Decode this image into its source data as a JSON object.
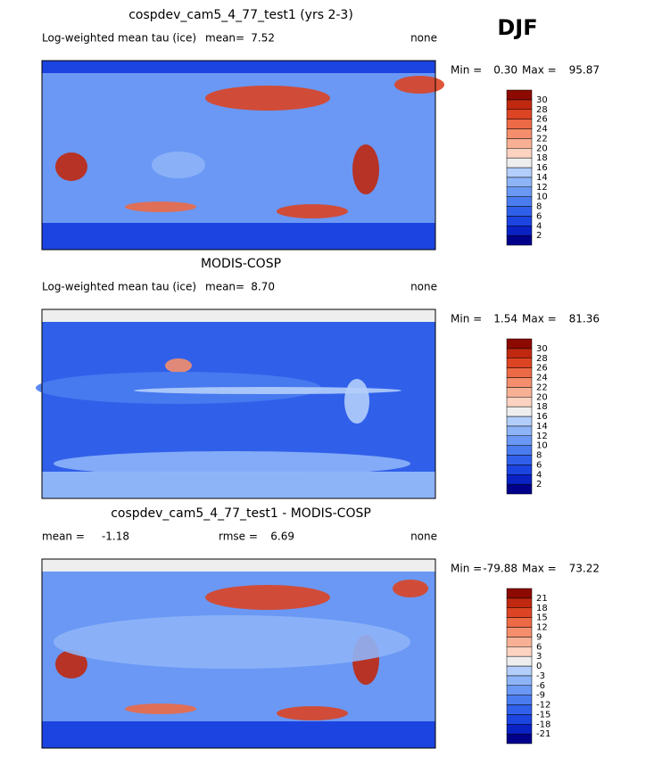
{
  "season": "DJF",
  "panels": [
    {
      "title": "cospdev_cam5_4_77_test1 (yrs 2-3)",
      "variable": "Log-weighted mean tau (ice)",
      "mean_label": "mean=",
      "mean": "7.52",
      "units": "none",
      "min_label": "Min =",
      "min": "0.30",
      "max_label": "Max =",
      "max": "95.87",
      "colorbar": {
        "labels": [
          2,
          4,
          6,
          8,
          10,
          12,
          14,
          16,
          18,
          20,
          22,
          24,
          26,
          28,
          30
        ],
        "colors": [
          "#00008b",
          "#0a22c4",
          "#1c44e0",
          "#3060ea",
          "#4a7cf0",
          "#6a98f4",
          "#8eb4f8",
          "#b4cefb",
          "#eeeeee",
          "#fcd2c0",
          "#f8b094",
          "#f48e6c",
          "#ec6a46",
          "#dc4424",
          "#c02810",
          "#8c0a00"
        ]
      }
    },
    {
      "title": "MODIS-COSP",
      "variable": "Log-weighted mean tau (ice)",
      "mean_label": "mean=",
      "mean": "8.70",
      "units": "none",
      "min_label": "Min =",
      "min": "1.54",
      "max_label": "Max =",
      "max": "81.36",
      "colorbar": {
        "labels": [
          2,
          4,
          6,
          8,
          10,
          12,
          14,
          16,
          18,
          20,
          22,
          24,
          26,
          28,
          30
        ],
        "colors": [
          "#00008b",
          "#0a22c4",
          "#1c44e0",
          "#3060ea",
          "#4a7cf0",
          "#6a98f4",
          "#8eb4f8",
          "#b4cefb",
          "#eeeeee",
          "#fcd2c0",
          "#f8b094",
          "#f48e6c",
          "#ec6a46",
          "#dc4424",
          "#c02810",
          "#8c0a00"
        ]
      }
    },
    {
      "title": "cospdev_cam5_4_77_test1 - MODIS-COSP",
      "mean_label": "mean =",
      "mean": "-1.18",
      "rmse_label": "rmse =",
      "rmse": "6.69",
      "units": "none",
      "min_label": "Min =",
      "min": "-79.88",
      "max_label": "Max =",
      "max": "73.22",
      "colorbar": {
        "labels": [
          -21,
          -18,
          -15,
          -12,
          -9,
          -6,
          -3,
          0,
          3,
          6,
          9,
          12,
          15,
          18,
          21
        ],
        "colors": [
          "#00008b",
          "#0a22c4",
          "#1c44e0",
          "#3060ea",
          "#4a7cf0",
          "#6a98f4",
          "#8eb4f8",
          "#b4cefb",
          "#eeeeee",
          "#fcd2c0",
          "#f8b094",
          "#f48e6c",
          "#ec6a46",
          "#dc4424",
          "#c02810",
          "#8c0a00"
        ]
      }
    }
  ]
}
